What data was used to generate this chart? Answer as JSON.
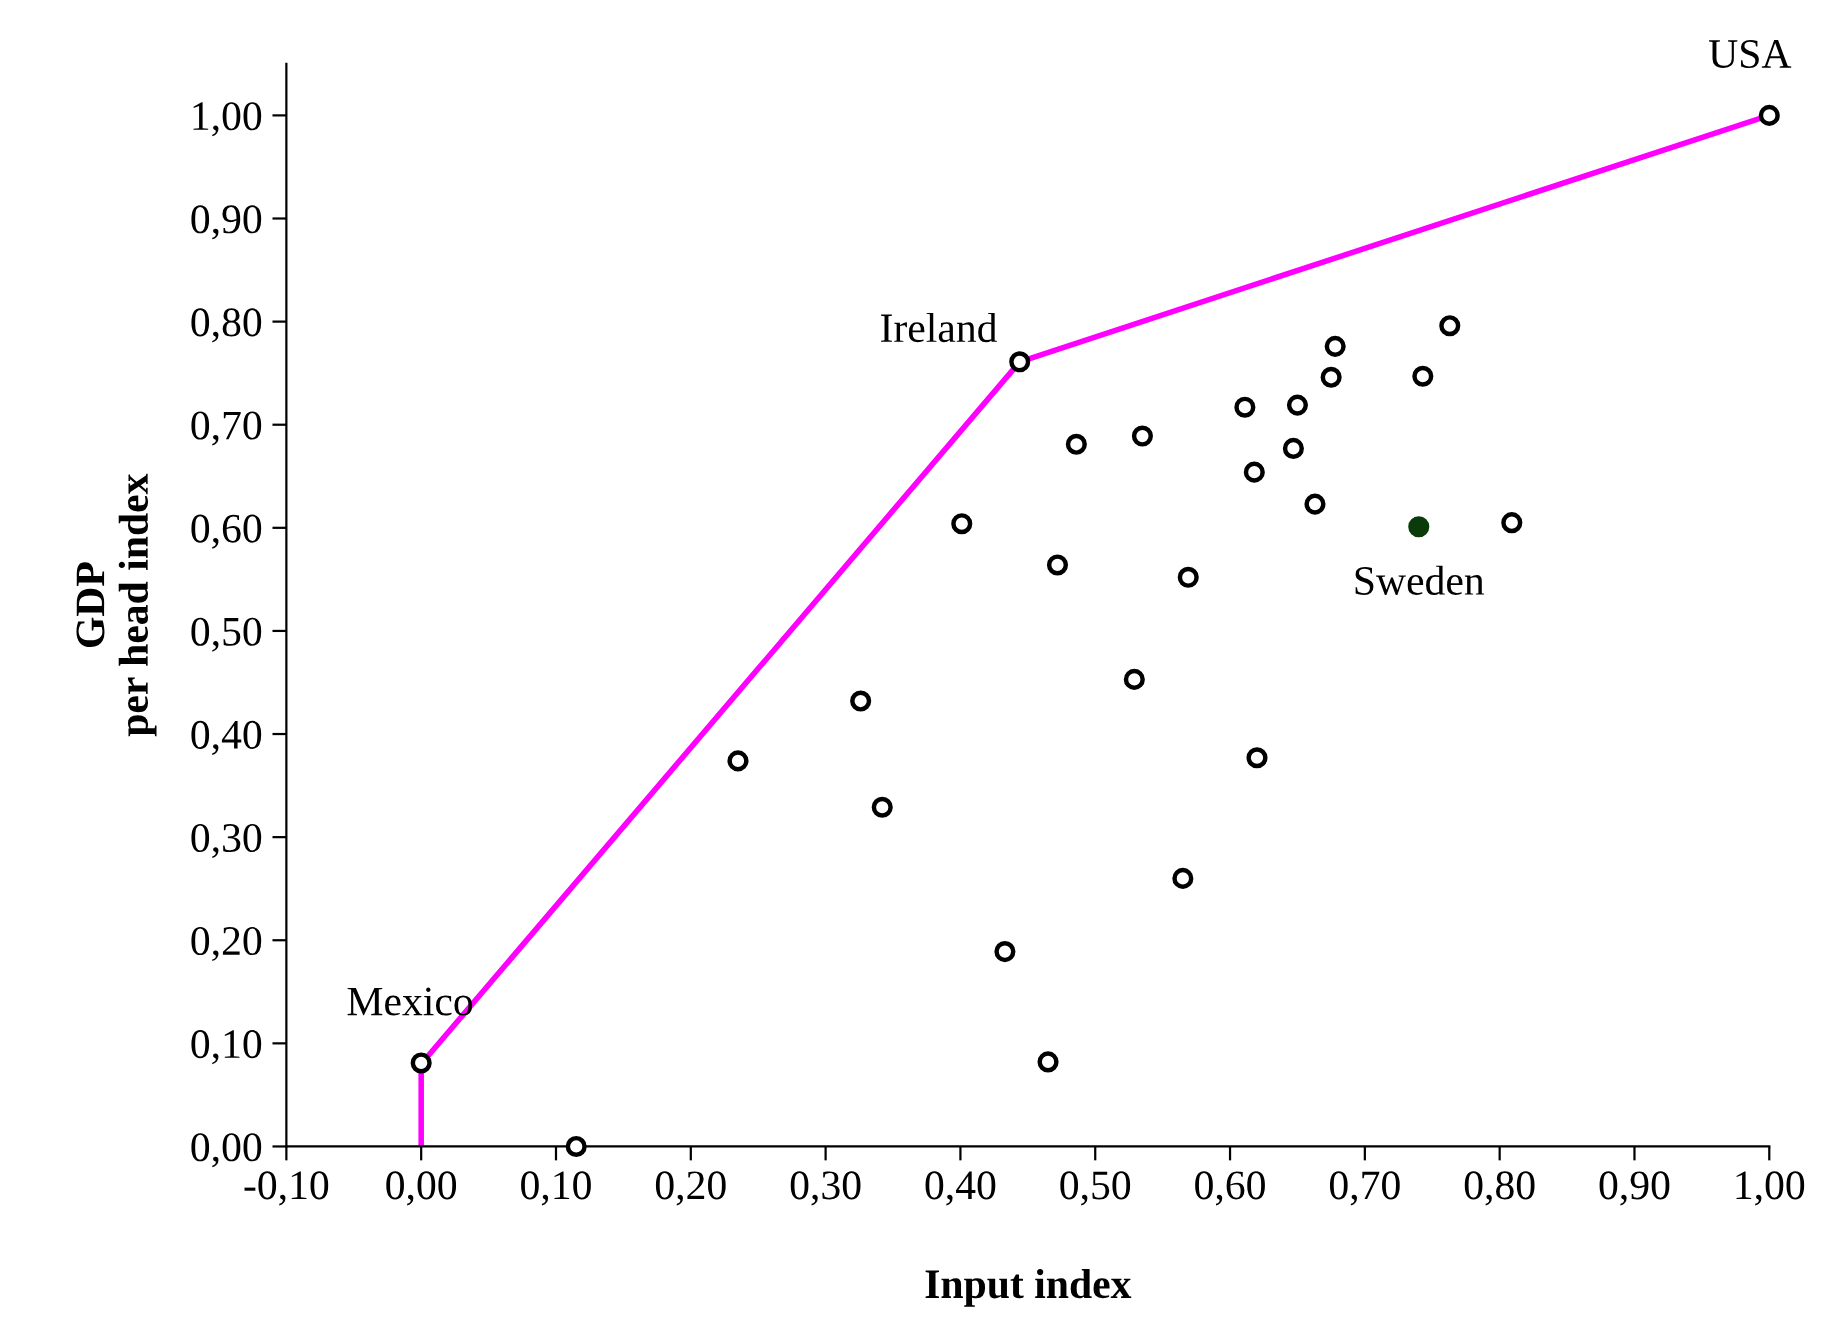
{
  "chart_data": {
    "type": "scatter",
    "xlabel": "Input index",
    "ylabel": "GDP\nper head index",
    "xlim": [
      -0.1,
      1.0
    ],
    "ylim": [
      0,
      1.05
    ],
    "xticks": [
      {
        "value": -0.1,
        "label": "-0,10"
      },
      {
        "value": 0,
        "label": "0,00"
      },
      {
        "value": 0.1,
        "label": "0,10"
      },
      {
        "value": 0.2,
        "label": "0,20"
      },
      {
        "value": 0.3,
        "label": "0,30"
      },
      {
        "value": 0.4,
        "label": "0,40"
      },
      {
        "value": 0.5,
        "label": "0,50"
      },
      {
        "value": 0.6,
        "label": "0,60"
      },
      {
        "value": 0.7,
        "label": "0,70"
      },
      {
        "value": 0.8,
        "label": "0,80"
      },
      {
        "value": 0.9,
        "label": "0,90"
      },
      {
        "value": 1.0,
        "label": "1,00"
      }
    ],
    "yticks": [
      {
        "value": 0,
        "label": "0,00"
      },
      {
        "value": 0.1,
        "label": "0,10"
      },
      {
        "value": 0.2,
        "label": "0,20"
      },
      {
        "value": 0.3,
        "label": "0,30"
      },
      {
        "value": 0.4,
        "label": "0,40"
      },
      {
        "value": 0.5,
        "label": "0,50"
      },
      {
        "value": 0.6,
        "label": "0,60"
      },
      {
        "value": 0.7,
        "label": "0,70"
      },
      {
        "value": 0.8,
        "label": "0,80"
      },
      {
        "value": 0.9,
        "label": "0,90"
      },
      {
        "value": 1.0,
        "label": "1,00"
      }
    ],
    "grid": false,
    "legend": false,
    "series": [
      {
        "type": "line",
        "color": "#ff00ff",
        "x": [
          0,
          0,
          0.444,
          1.0
        ],
        "values": [
          0,
          0.08,
          0.761,
          1.0
        ]
      },
      {
        "marker": "circle",
        "color": "#000000",
        "x": [
          1.0,
          0.444,
          0.763,
          0.678,
          0.675,
          0.743,
          0.611,
          0.65,
          0.535,
          0.486,
          0.647,
          0.618,
          0.663,
          0.401,
          0.809,
          0.472,
          0.569,
          0.529,
          0.326,
          0.235,
          0.62,
          0.342,
          0.565,
          0.433,
          0.465,
          0.0,
          0.115
        ],
        "values": [
          1.0,
          0.761,
          0.796,
          0.776,
          0.746,
          0.747,
          0.717,
          0.719,
          0.689,
          0.681,
          0.677,
          0.654,
          0.623,
          0.604,
          0.605,
          0.564,
          0.552,
          0.453,
          0.432,
          0.374,
          0.377,
          0.329,
          0.26,
          0.189,
          0.082,
          0.081,
          0.0
        ]
      },
      {
        "marker": "circle",
        "color": "#0b3b0b",
        "x": [
          0.74
        ],
        "values": [
          0.601
        ]
      }
    ],
    "annotations": [
      {
        "text": "USA",
        "x": 1.0,
        "y": 1.0
      },
      {
        "text": "Ireland",
        "x": 0.444,
        "y": 0.761
      },
      {
        "text": "Mexico",
        "x": 0.0,
        "y": 0.081
      },
      {
        "text": "Sweden",
        "x": 0.74,
        "y": 0.601
      }
    ]
  }
}
